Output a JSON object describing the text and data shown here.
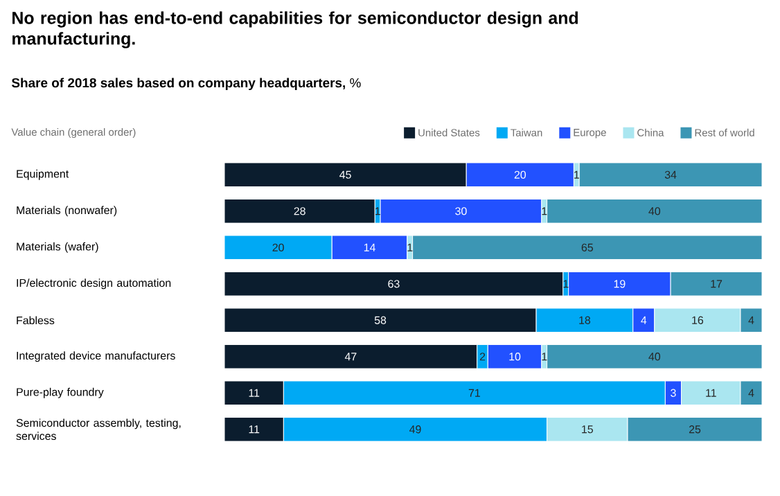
{
  "chart_data": {
    "type": "bar",
    "orientation": "horizontal",
    "stacked": true,
    "data_labels": true,
    "legend": "top",
    "tick_labels": "y",
    "xlim": [
      0,
      100
    ],
    "title": "No region has end-to-end capabilities for semiconductor design and manufacturing.",
    "subtitle": "**Share of 2018 sales based on company headquarters,** %",
    "legend_title": "Value chain (general order)",
    "categories": [
      "Equipment",
      "Materials (nonwafer)",
      "Materials (wafer)",
      "IP/electronic design automation",
      "Fabless",
      "Integrated device manufacturers",
      "Pure-play foundry",
      "Semiconductor assembly, testing, services"
    ],
    "series": [
      {
        "name": "United States",
        "color": "#0b1d2e",
        "values": [
          45,
          28,
          null,
          63,
          58,
          47,
          11,
          11
        ]
      },
      {
        "name": "Taiwan",
        "color": "#00a9f4",
        "values": [
          null,
          1,
          20,
          1,
          18,
          2,
          71,
          49
        ]
      },
      {
        "name": "Europe",
        "color": "#2251ff",
        "values": [
          20,
          30,
          14,
          19,
          4,
          10,
          3,
          null
        ]
      },
      {
        "name": "China",
        "color": "#aae6f0",
        "values": [
          1,
          1,
          1,
          null,
          16,
          1,
          11,
          15
        ]
      },
      {
        "name": "Rest of world",
        "color": "#3c96b4",
        "values": [
          34,
          40,
          65,
          17,
          4,
          40,
          4,
          25
        ]
      }
    ]
  }
}
